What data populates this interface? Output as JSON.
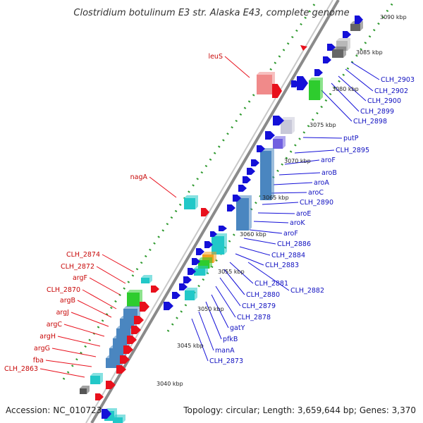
{
  "title": "Clostridium botulinum E3 str. Alaska E43, complete genome",
  "accession": "Accession: NC_010723",
  "summary": "Topology: circular; Length: 3,659,644 bp; Genes: 3,370",
  "colors": {
    "reverse": "#e8101c",
    "forward": "#1410d8",
    "backbone": "#8a8a8a",
    "tick": "#2f9a2f"
  },
  "ticks": [
    "3040 kbp",
    "3045 kbp",
    "3050 kbp",
    "3055 kbp",
    "3060 kbp",
    "3065 kbp",
    "3070 kbp",
    "3075 kbp",
    "3080 kbp",
    "3085 kbp",
    "3090 kbp"
  ],
  "left_labels": [
    "leuS",
    "nagA",
    "CLH_2874",
    "CLH_2872",
    "argF",
    "CLH_2870",
    "argB",
    "argJ",
    "argC",
    "argH",
    "argG",
    "fba",
    "CLH_2863"
  ],
  "right_labels": [
    "CLH_2903",
    "CLH_2902",
    "CLH_2900",
    "CLH_2899",
    "CLH_2898",
    "putP",
    "CLH_2895",
    "aroF",
    "aroB",
    "aroA",
    "aroC",
    "CLH_2890",
    "aroE",
    "aroK",
    "aroF",
    "CLH_2886",
    "CLH_2884",
    "CLH_2883",
    "CLH_2881",
    "CLH_2882",
    "CLH_2880",
    "CLH_2879",
    "CLH_2878",
    "gatY",
    "pfkB",
    "manA",
    "CLH_2873"
  ]
}
